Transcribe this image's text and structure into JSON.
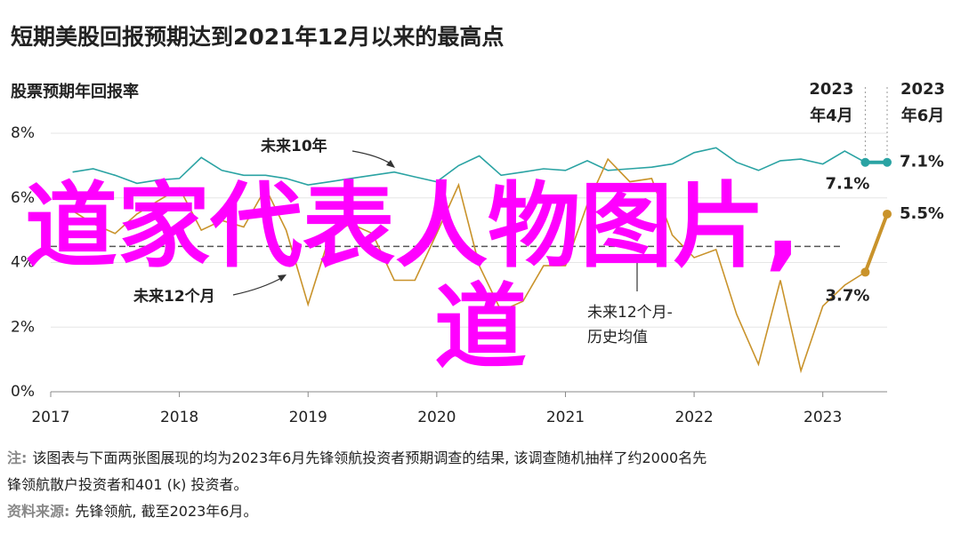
{
  "chart_data": {
    "type": "line",
    "title": "短期美股回报预期达到2021年12月以来的最高点",
    "y_label": "股票预期年回报率",
    "x": [
      2017.17,
      2017.33,
      2017.5,
      2017.67,
      2017.83,
      2018,
      2018.17,
      2018.33,
      2018.5,
      2018.67,
      2018.83,
      2019,
      2019.17,
      2019.33,
      2019.5,
      2019.67,
      2019.83,
      2020,
      2020.17,
      2020.33,
      2020.5,
      2020.67,
      2020.83,
      2021,
      2021.17,
      2021.33,
      2021.5,
      2021.67,
      2021.83,
      2022,
      2022.17,
      2022.33,
      2022.5,
      2022.67,
      2022.83,
      2023,
      2023.17,
      2023.33,
      2023.5
    ],
    "series": [
      {
        "name": "未来10年",
        "color": "#2aa3a3",
        "values": [
          6.8,
          6.9,
          6.7,
          6.45,
          6.55,
          6.6,
          7.25,
          6.85,
          6.7,
          6.7,
          6.6,
          6.4,
          6.5,
          6.6,
          6.7,
          6.8,
          6.65,
          6.5,
          7.0,
          7.3,
          6.7,
          6.8,
          6.9,
          6.85,
          7.15,
          6.85,
          6.9,
          6.95,
          7.05,
          7.4,
          7.55,
          7.1,
          6.85,
          7.15,
          7.2,
          7.05,
          7.45,
          7.1,
          7.1
        ],
        "value_labels": [
          null,
          null,
          null,
          null,
          null,
          null,
          null,
          null,
          null,
          null,
          null,
          null,
          null,
          null,
          null,
          null,
          null,
          null,
          null,
          null,
          null,
          null,
          null,
          null,
          null,
          null,
          null,
          null,
          null,
          null,
          null,
          null,
          null,
          null,
          null,
          null,
          null,
          "7.1%",
          "7.1%"
        ]
      },
      {
        "name": "未来12个月",
        "color": "#c9932b",
        "values": [
          5.6,
          5.2,
          4.9,
          5.5,
          5.9,
          6.3,
          5.0,
          5.3,
          5.1,
          6.3,
          5.0,
          2.7,
          4.85,
          5.2,
          4.9,
          3.45,
          3.45,
          4.9,
          6.4,
          3.9,
          2.5,
          2.8,
          3.9,
          3.9,
          5.8,
          7.2,
          6.5,
          6.6,
          4.85,
          4.15,
          4.4,
          2.4,
          0.85,
          3.45,
          0.65,
          2.65,
          3.3,
          3.7,
          5.5
        ],
        "value_labels": [
          null,
          null,
          null,
          null,
          null,
          null,
          null,
          null,
          null,
          null,
          null,
          null,
          null,
          null,
          null,
          null,
          null,
          null,
          null,
          null,
          null,
          null,
          null,
          null,
          null,
          null,
          null,
          null,
          null,
          null,
          null,
          null,
          null,
          null,
          null,
          null,
          null,
          "3.7%",
          "5.5%"
        ]
      }
    ],
    "reference_line": {
      "value": 4.5,
      "label": [
        "未来12个月-",
        "历史均值"
      ]
    },
    "period_markers": [
      {
        "x": 2023.33,
        "label": [
          "2023",
          "年4月"
        ]
      },
      {
        "x": 2023.5,
        "label": [
          "2023",
          "年6月"
        ]
      }
    ],
    "xlim": [
      2017,
      2023.5
    ],
    "xticks": [
      2017,
      2018,
      2019,
      2020,
      2021,
      2022,
      2023
    ],
    "ylim": [
      0,
      8
    ],
    "yticks": [
      {
        "value": 0,
        "label": "0%"
      },
      {
        "value": 2,
        "label": "2%"
      },
      {
        "value": 4,
        "label": "4%"
      },
      {
        "value": 6,
        "label": "6%"
      },
      {
        "value": 8,
        "label": "8%"
      }
    ],
    "grid": true,
    "notes": [
      {
        "label": "注:",
        "lines": [
          "该图表与下面两张图展现的均为2023年6月先锋领航投资者预期调查的结果, 该调查随机抽样了约2000名先",
          "锋领航散户投资者和401 (k) 投资者。"
        ]
      },
      {
        "label": "资料来源:",
        "lines": [
          "先锋领航, 截至2023年6月。"
        ]
      }
    ],
    "overlay_text": [
      "道家代表人物图片,",
      "道"
    ]
  }
}
